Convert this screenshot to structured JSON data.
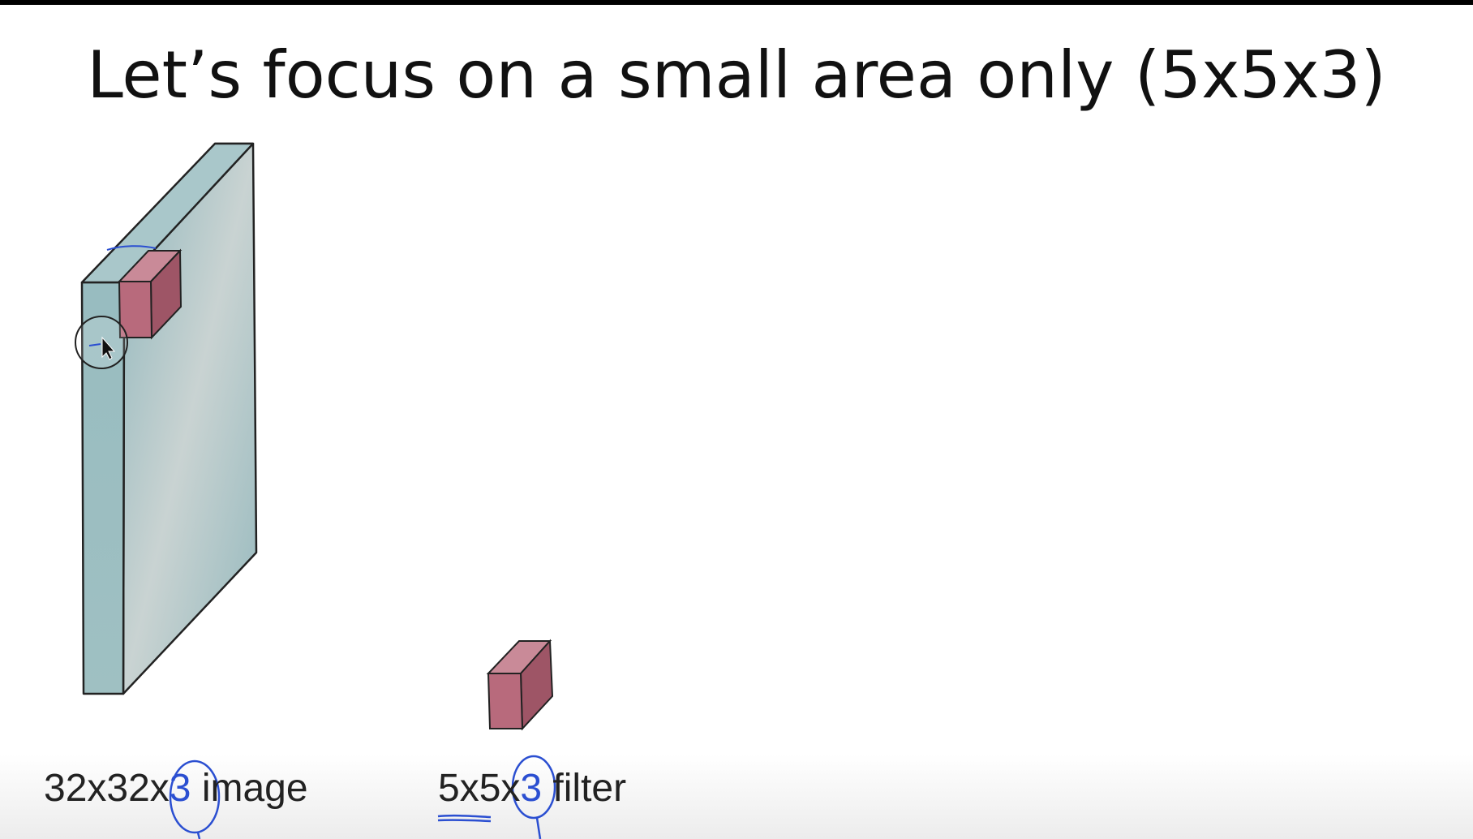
{
  "slide": {
    "title": "Let’s focus on a small area only (5x5x3)"
  },
  "labels": {
    "image": {
      "prefix": "32x32x",
      "highlight": "3",
      "suffix": " image"
    },
    "filter": {
      "prefix": "5x5x",
      "highlight": "3",
      "suffix": " filter"
    }
  },
  "colors": {
    "volume_front": "#9fc0c4",
    "volume_side": "#8fb2b6",
    "cube_front": "#b86a7c",
    "cube_side": "#9e5566",
    "cube_top": "#c98a98",
    "annotation_ink": "#2b4fd1"
  },
  "icons": [
    "mouse-cursor-icon"
  ]
}
